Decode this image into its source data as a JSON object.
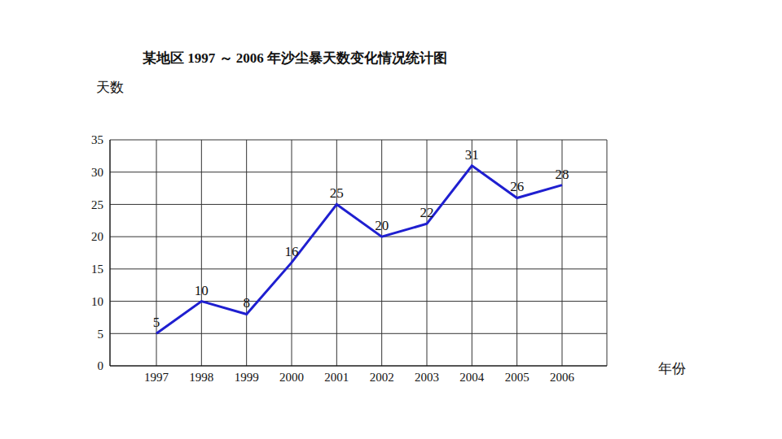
{
  "chart_data": {
    "type": "line",
    "title": "某地区 1997 ～ 2006 年沙尘暴天数变化情况统计图",
    "x_label": "年份",
    "y_label": "天数",
    "categories": [
      "1997",
      "1998",
      "1999",
      "2000",
      "2001",
      "2002",
      "2003",
      "2004",
      "2005",
      "2006"
    ],
    "values": [
      5,
      10,
      8,
      16,
      25,
      20,
      22,
      31,
      26,
      28
    ],
    "color": "#1f1fd0",
    "ylim": [
      0,
      35
    ],
    "yticks": [
      0,
      5,
      10,
      15,
      20,
      25,
      30,
      35
    ],
    "grid": true,
    "data_labels": true,
    "marker": "none",
    "line_style": "solid"
  }
}
